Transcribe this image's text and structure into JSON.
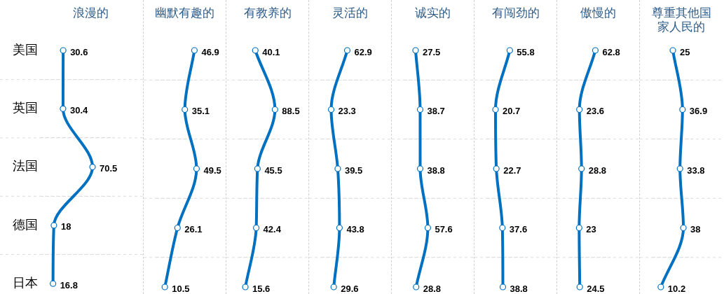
{
  "chart_data": [
    {
      "type": "line",
      "title": "浪漫的",
      "orientation": "horizontal",
      "categories": [
        "美国",
        "英国",
        "法国",
        "德国",
        "日本"
      ],
      "values": [
        30.6,
        30.4,
        70.5,
        18,
        16.8
      ],
      "color": "#0070c0",
      "marker": "circle",
      "data_labels": true,
      "grid": "y",
      "tick_labels": "y"
    },
    {
      "type": "line",
      "title": "幽默有趣的",
      "orientation": "horizontal",
      "categories": [
        null,
        null,
        null,
        null,
        null
      ],
      "values": [
        46.9,
        35.1,
        49.5,
        26.1,
        10.5
      ],
      "color": "#0070c0",
      "marker": "circle",
      "data_labels": true,
      "grid": "y",
      "tick_labels": false
    },
    {
      "type": "line",
      "title": "有教养的",
      "orientation": "horizontal",
      "categories": [
        null,
        null,
        null,
        null,
        null
      ],
      "values": [
        40.1,
        88.5,
        45.5,
        42.4,
        15.6
      ],
      "color": "#0070c0",
      "marker": "circle",
      "data_labels": true,
      "grid": "y",
      "tick_labels": false
    },
    {
      "type": "line",
      "title": "灵活的",
      "orientation": "horizontal",
      "categories": [
        null,
        null,
        null,
        null,
        null
      ],
      "values": [
        62.9,
        23.3,
        39.5,
        43.8,
        29.6
      ],
      "color": "#0070c0",
      "marker": "circle",
      "data_labels": true,
      "grid": "y",
      "tick_labels": false
    },
    {
      "type": "line",
      "title": "诚实的",
      "orientation": "horizontal",
      "categories": [
        null,
        null,
        null,
        null,
        null
      ],
      "values": [
        27.5,
        38.7,
        38.8,
        57.6,
        28.8
      ],
      "color": "#0070c0",
      "marker": "circle",
      "data_labels": true,
      "grid": "y",
      "tick_labels": false
    },
    {
      "type": "line",
      "title": "有闯劲的",
      "orientation": "horizontal",
      "categories": [
        null,
        null,
        null,
        null,
        null
      ],
      "values": [
        55.8,
        20.7,
        22.7,
        37.6,
        38.8
      ],
      "color": "#0070c0",
      "marker": "circle",
      "data_labels": true,
      "grid": "y",
      "tick_labels": false
    },
    {
      "type": "line",
      "title": "傲慢的",
      "orientation": "horizontal",
      "categories": [
        null,
        null,
        null,
        null,
        null
      ],
      "values": [
        62.8,
        23.6,
        28.8,
        23,
        24.5
      ],
      "color": "#0070c0",
      "marker": "circle",
      "data_labels": true,
      "grid": "y",
      "tick_labels": false
    },
    {
      "type": "line",
      "title": "尊重其他国家人民的",
      "orientation": "horizontal",
      "categories": [
        null,
        null,
        null,
        null,
        null
      ],
      "values": [
        25,
        36.9,
        33.8,
        38,
        10.2
      ],
      "color": "#0070c0",
      "marker": "circle",
      "data_labels": true,
      "grid": "y",
      "tick_labels": false
    }
  ]
}
